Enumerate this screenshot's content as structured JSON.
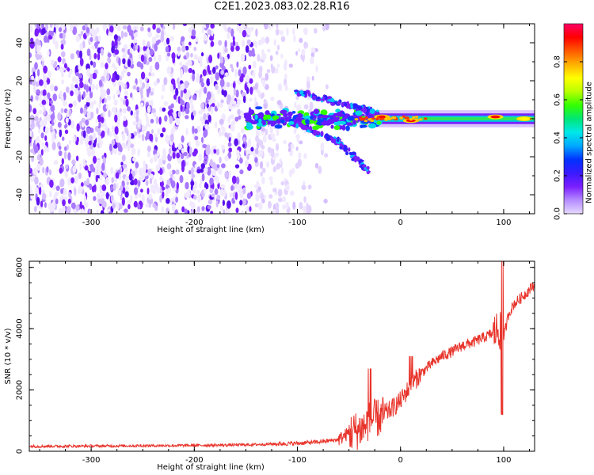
{
  "title": "C2E1.2023.083.02.28.R16",
  "chart_data": [
    {
      "type": "heatmap",
      "xlabel": "Height of straight line (km)",
      "ylabel": "Frequency (Hz)",
      "xlim": [
        -360,
        130
      ],
      "ylim": [
        -50,
        50
      ],
      "xticks": [
        -300,
        -200,
        -100,
        0,
        100
      ],
      "yticks": [
        -40,
        -20,
        0,
        20,
        40
      ],
      "colorbar": {
        "label": "Normalized spectral amplitude",
        "range": [
          0,
          1
        ],
        "ticks": [
          "0.0",
          "0.2",
          "0.4",
          "0.6",
          "0.8"
        ],
        "colormap": [
          "#ffffff",
          "#e6d9ff",
          "#b58cff",
          "#7b1fff",
          "#3a1aff",
          "#0033ff",
          "#00a8ff",
          "#00e8e8",
          "#00e676",
          "#33ff00",
          "#b8ff00",
          "#ffff00",
          "#ffb000",
          "#ff5a00",
          "#ff0000",
          "#ff0066"
        ]
      },
      "features": {
        "noise_region": [
          -360,
          -80
        ],
        "main_tone_freq": 0,
        "branch_upper": {
          "x": [
            -100,
            -50,
            -25
          ],
          "y": [
            14,
            7,
            4
          ]
        },
        "branch_lower": {
          "x": [
            -100,
            -60,
            -30
          ],
          "y": [
            -3,
            -12,
            -28
          ]
        },
        "hot_spots": [
          {
            "x": -18,
            "y": 1,
            "amp": 0.95
          },
          {
            "x": 10,
            "y": -1,
            "amp": 0.95
          },
          {
            "x": 92,
            "y": 1,
            "amp": 0.95
          },
          {
            "x": 120,
            "y": 0,
            "amp": 0.7
          }
        ]
      }
    },
    {
      "type": "line",
      "xlabel": "Height of straight line (km)",
      "ylabel": "SNR (10 * v/v)",
      "xlim": [
        -360,
        130
      ],
      "ylim": [
        0,
        6200
      ],
      "xticks": [
        -300,
        -200,
        -100,
        0,
        100
      ],
      "yticks": [
        0,
        2000,
        4000,
        6000
      ],
      "color": "#e8332a",
      "series": [
        {
          "x": [
            -360,
            -300,
            -250,
            -200,
            -150,
            -120,
            -100,
            -80,
            -60,
            -50,
            -40,
            -35,
            -30,
            -20,
            -10,
            0,
            10,
            20,
            30,
            40,
            50,
            60,
            70,
            80,
            90,
            95,
            100,
            105,
            110,
            120,
            130
          ],
          "y": [
            160,
            170,
            180,
            190,
            210,
            240,
            260,
            300,
            380,
            600,
            700,
            800,
            1000,
            1100,
            1350,
            1650,
            2150,
            2550,
            2850,
            3100,
            3250,
            3450,
            3550,
            3700,
            3850,
            4000,
            3700,
            4500,
            4800,
            5100,
            5450
          ]
        }
      ]
    }
  ]
}
